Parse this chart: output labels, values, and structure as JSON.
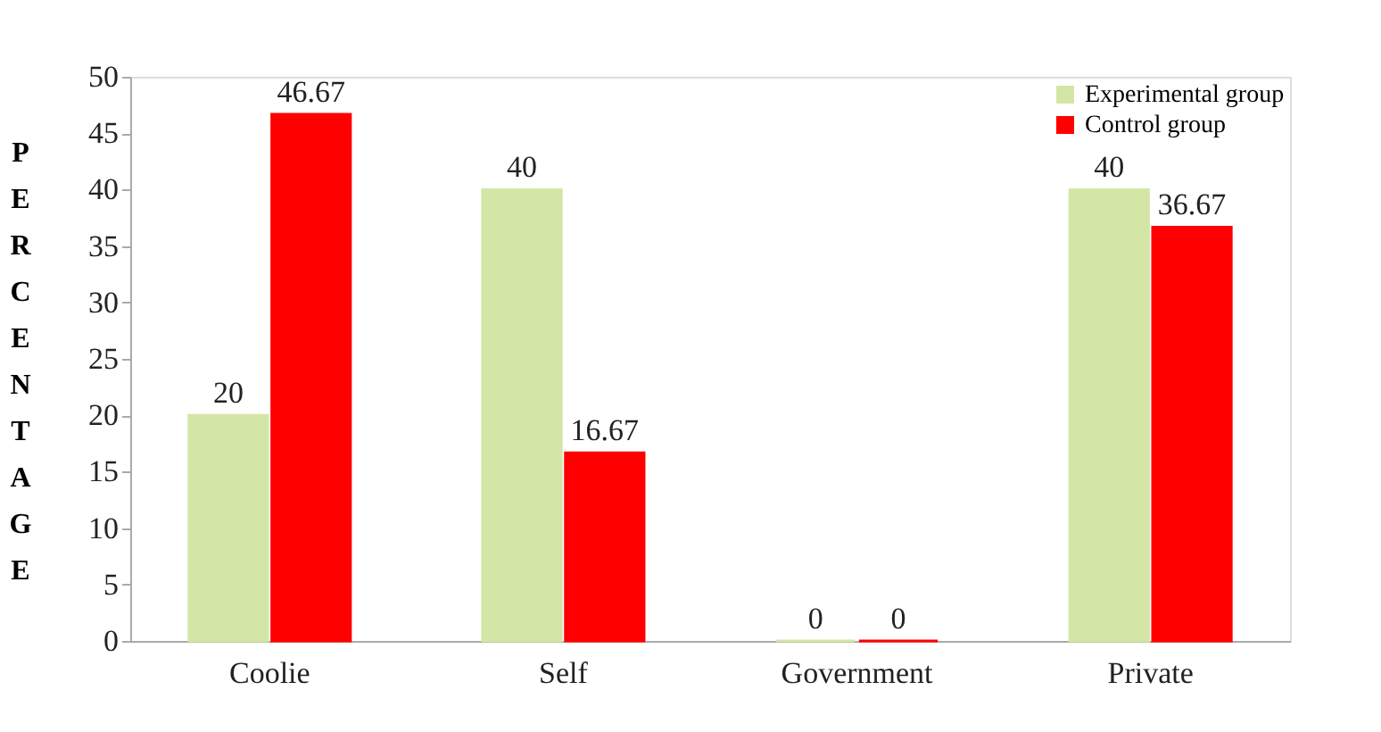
{
  "chart_data": {
    "type": "bar",
    "ylabel": "PERCENTAGE",
    "categories": [
      "Coolie",
      "Self",
      "Government",
      "Private"
    ],
    "series": [
      {
        "name": "Experimental group",
        "color": "#d4e6a5",
        "values": [
          20,
          40,
          0,
          40
        ]
      },
      {
        "name": "Control group",
        "color": "#ff0000",
        "values": [
          46.67,
          16.67,
          0,
          36.67
        ]
      }
    ],
    "ylim": [
      0,
      50
    ],
    "yticks": [
      0,
      5,
      10,
      15,
      20,
      25,
      30,
      35,
      40,
      45,
      50
    ],
    "grid": false,
    "legend": "top right",
    "data_labels": true
  }
}
